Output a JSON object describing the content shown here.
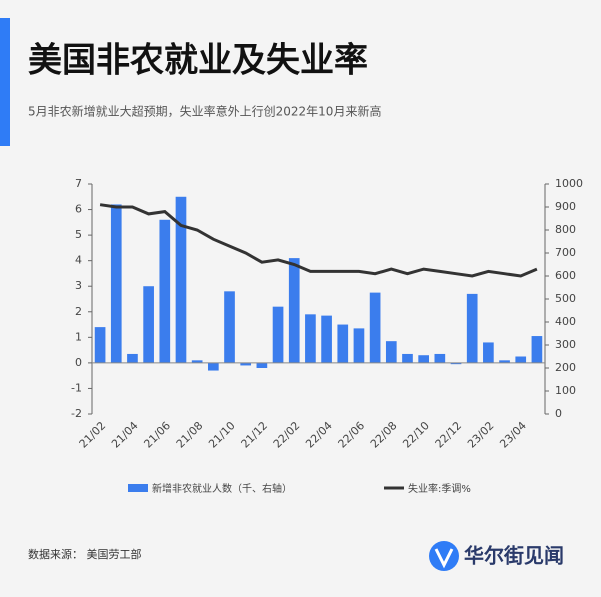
{
  "title": "美国非农就业及失业率",
  "subtitle": "5月非农新增就业大超预期，失业率意外上行创2022年10月来新高",
  "source": "数据来源：  美国劳工部",
  "logo": "华尔街见闻",
  "chart_data": {
    "type": "bar",
    "categories": [
      "21/02",
      null,
      "21/04",
      null,
      "21/06",
      null,
      "21/08",
      null,
      "21/10",
      null,
      "21/12",
      null,
      "22/02",
      null,
      "22/04",
      null,
      "22/06",
      null,
      "22/08",
      null,
      "22/10",
      null,
      "22/12",
      null,
      "23/02",
      null,
      "23/04",
      null
    ],
    "series": [
      {
        "name": "新增非农就业人数（千、右轴）",
        "color": "#3b7ded",
        "values": [
          1.4,
          6.2,
          0.35,
          3.0,
          5.6,
          6.5,
          0.1,
          -0.3,
          2.8,
          -0.1,
          -0.2,
          2.2,
          4.1,
          1.9,
          1.85,
          1.5,
          1.35,
          2.75,
          0.85,
          0.35,
          0.3,
          0.35,
          -0.05,
          2.7,
          0.8,
          0.1,
          0.25,
          1.05
        ]
      },
      {
        "name": "失业率:季调%",
        "color": "#333333",
        "type": "line",
        "axis": "y2",
        "values": [
          910,
          900,
          900,
          870,
          880,
          820,
          800,
          760,
          730,
          700,
          660,
          670,
          650,
          620,
          620,
          620,
          620,
          610,
          630,
          610,
          630,
          620,
          610,
          600,
          620,
          610,
          600,
          630
        ]
      }
    ],
    "ylim": [
      -2,
      7
    ],
    "yticks": [
      -2,
      -1,
      0,
      1,
      2,
      3,
      4,
      5,
      6,
      7
    ],
    "y2lim": [
      0,
      1000
    ],
    "y2ticks": [
      0,
      100,
      200,
      300,
      400,
      500,
      600,
      700,
      800,
      900,
      1000
    ]
  }
}
